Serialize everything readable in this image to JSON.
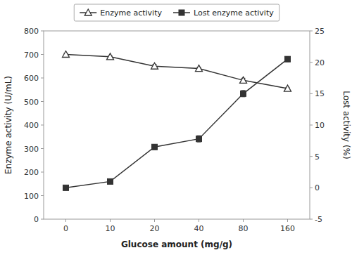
{
  "chart_data": {
    "type": "line",
    "xlabel": "Glucose amount (mg/g)",
    "ylabel": "Enzyme activity (U/mL)",
    "y2label": "Lost activity (%)",
    "categories": [
      "0",
      "10",
      "20",
      "40",
      "80",
      "160"
    ],
    "series": [
      {
        "name": "Enzyme activity",
        "color": "#333333",
        "marker": "triangle",
        "line_style": "solid",
        "values": [
          700,
          690,
          650,
          640,
          590,
          555
        ],
        "errors": [
          5,
          4,
          8,
          5,
          9,
          5
        ]
      },
      {
        "name": "Lost enzyme activity",
        "color": "#333333",
        "marker": "square",
        "line_style": "solid",
        "axis": "y2",
        "values": [
          0,
          1.0,
          6.5,
          7.8,
          15.0,
          20.5
        ],
        "errors": [
          0.2,
          0.3,
          0.4,
          0.5,
          0.5,
          0.4
        ]
      }
    ],
    "ylim": [
      0,
      800
    ],
    "yticks": [
      0,
      100,
      200,
      300,
      400,
      500,
      600,
      700,
      800
    ],
    "y2lim": [
      -5,
      25
    ],
    "y2ticks": [
      -5,
      0,
      5,
      10,
      15,
      20,
      25
    ],
    "legend": "top",
    "grid": false
  }
}
